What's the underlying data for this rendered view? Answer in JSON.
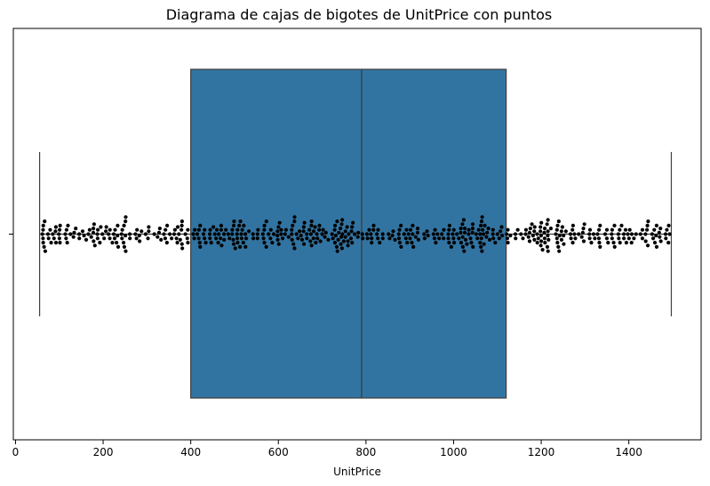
{
  "chart_data": {
    "type": "box+swarm",
    "title": "Diagrama de cajas de bigotes de UnitPrice con puntos",
    "xlabel": "UnitPrice",
    "ylabel": "",
    "xlim": [
      -5,
      1565
    ],
    "xticks": [
      0,
      200,
      400,
      600,
      800,
      1000,
      1200,
      1400
    ],
    "box": {
      "whisker_low": 55,
      "q1": 400,
      "median": 790,
      "q3": 1120,
      "whisker_high": 1497,
      "fill_color": "#3274a1",
      "edge_color": "#3f3f3f"
    },
    "points": {
      "color": "#000000",
      "count": 520,
      "min": 55,
      "max": 1497
    },
    "grid": false,
    "legend": "none"
  }
}
